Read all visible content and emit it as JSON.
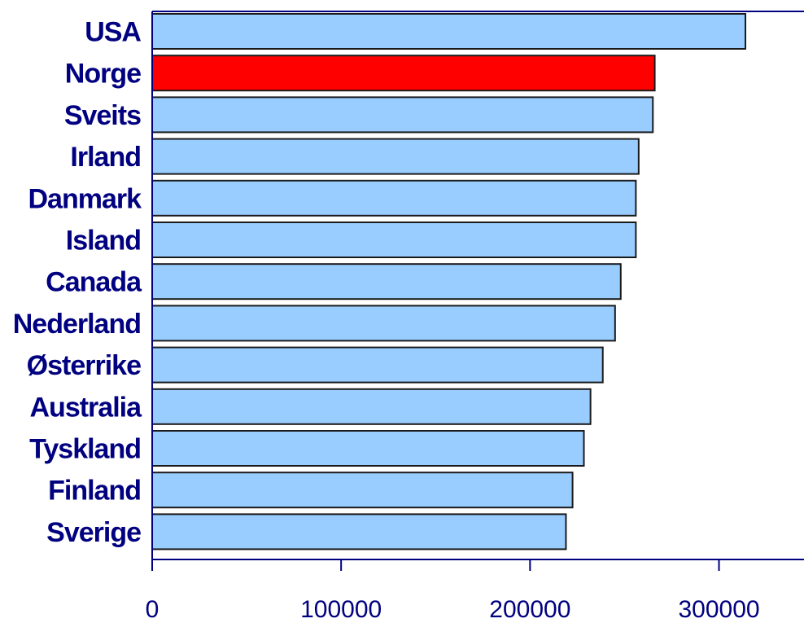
{
  "chart_data": {
    "type": "bar",
    "orientation": "horizontal",
    "title": "",
    "xlabel": "",
    "ylabel": "",
    "categories": [
      "USA",
      "Norge",
      "Sveits",
      "Irland",
      "Danmark",
      "Island",
      "Canada",
      "Nederland",
      "Østerrike",
      "Australia",
      "Tyskland",
      "Finland",
      "Sverige"
    ],
    "values": [
      314000,
      266000,
      265000,
      257500,
      256000,
      256000,
      248000,
      245000,
      238500,
      232000,
      228500,
      222500,
      219000
    ],
    "highlight_category": "Norge",
    "xlim": [
      0,
      345000
    ],
    "x_ticks": [
      0,
      100000,
      200000,
      300000
    ],
    "x_tick_labels": [
      "0",
      "100000",
      "200000",
      "300000"
    ],
    "grid": false,
    "legend": "none",
    "colors": {
      "bar": "#99ccff",
      "highlight": "#ff0000",
      "bar_outline": "#1a1a1a",
      "axis": "#000080",
      "label_text": "#000080"
    }
  }
}
